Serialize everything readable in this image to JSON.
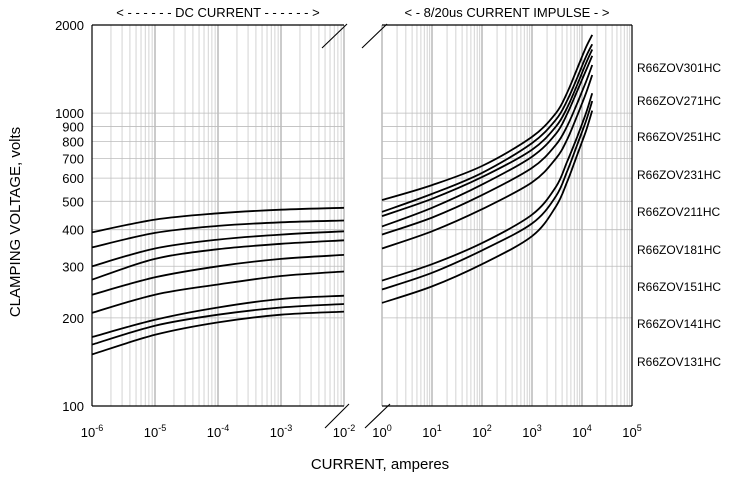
{
  "chart_data": {
    "type": "line",
    "ylabel": "CLAMPING VOLTAGE, volts",
    "xlabel": "CURRENT, amperes",
    "y_scale": "log",
    "ylim": [
      100,
      2000
    ],
    "y_ticks": [
      {
        "value": 100,
        "label": "100"
      },
      {
        "value": 200,
        "label": "200"
      },
      {
        "value": 300,
        "label": "300"
      },
      {
        "value": 400,
        "label": "400"
      },
      {
        "value": 500,
        "label": "500"
      },
      {
        "value": 600,
        "label": "600"
      },
      {
        "value": 700,
        "label": "700"
      },
      {
        "value": 800,
        "label": "800"
      },
      {
        "value": 900,
        "label": "900"
      },
      {
        "value": 1000,
        "label": "1000"
      },
      {
        "value": 2000,
        "label": "2000"
      }
    ],
    "x_scale": "log",
    "grid": true,
    "panels": [
      {
        "name": "dc",
        "header": "< - - - - - - DC CURRENT - - - - - - >",
        "xlim": [
          1e-06,
          0.01
        ],
        "x_ticks": [
          {
            "value": 1e-06,
            "base": "10",
            "exp": "-6"
          },
          {
            "value": 1e-05,
            "base": "10",
            "exp": "-5"
          },
          {
            "value": 0.0001,
            "base": "10",
            "exp": "-4"
          },
          {
            "value": 0.001,
            "base": "10",
            "exp": "-3"
          },
          {
            "value": 0.01,
            "base": "10",
            "exp": "-2"
          }
        ]
      },
      {
        "name": "impulse",
        "header": "< - 8/20us CURRENT IMPULSE - >",
        "xlim": [
          1,
          100000
        ],
        "x_ticks": [
          {
            "value": 1,
            "base": "10",
            "exp": "0"
          },
          {
            "value": 10,
            "base": "10",
            "exp": "1"
          },
          {
            "value": 100,
            "base": "10",
            "exp": "2"
          },
          {
            "value": 1000,
            "base": "10",
            "exp": "3"
          },
          {
            "value": 10000,
            "base": "10",
            "exp": "4"
          },
          {
            "value": 100000,
            "base": "10",
            "exp": "5"
          }
        ]
      }
    ],
    "series": [
      {
        "name": "R66ZOV301HC",
        "dc": [
          [
            1e-06,
            392
          ],
          [
            1e-05,
            433
          ],
          [
            0.0001,
            455
          ],
          [
            0.001,
            468
          ],
          [
            0.01,
            475
          ]
        ],
        "impulse": [
          [
            1,
            505
          ],
          [
            10,
            568
          ],
          [
            100,
            660
          ],
          [
            1000,
            830
          ],
          [
            3000,
            1000
          ],
          [
            5000,
            1170
          ],
          [
            8000,
            1420
          ],
          [
            12000,
            1680
          ],
          [
            16000,
            1850
          ]
        ]
      },
      {
        "name": "R66ZOV271HC",
        "dc": [
          [
            1e-06,
            348
          ],
          [
            1e-05,
            390
          ],
          [
            0.0001,
            412
          ],
          [
            0.001,
            424
          ],
          [
            0.01,
            430
          ]
        ],
        "impulse": [
          [
            1,
            460
          ],
          [
            10,
            530
          ],
          [
            100,
            625
          ],
          [
            1000,
            790
          ],
          [
            3000,
            950
          ],
          [
            5000,
            1100
          ],
          [
            8000,
            1320
          ],
          [
            12000,
            1560
          ],
          [
            16000,
            1720
          ]
        ]
      },
      {
        "name": "R66ZOV251HC",
        "dc": [
          [
            1e-06,
            300
          ],
          [
            1e-05,
            345
          ],
          [
            0.0001,
            370
          ],
          [
            0.001,
            385
          ],
          [
            0.01,
            395
          ]
        ],
        "impulse": [
          [
            1,
            445
          ],
          [
            10,
            510
          ],
          [
            100,
            605
          ],
          [
            1000,
            750
          ],
          [
            3000,
            900
          ],
          [
            5000,
            1040
          ],
          [
            8000,
            1250
          ],
          [
            12000,
            1480
          ],
          [
            16000,
            1650
          ]
        ]
      },
      {
        "name": "R66ZOV231HC",
        "dc": [
          [
            1e-06,
            270
          ],
          [
            1e-05,
            318
          ],
          [
            0.0001,
            343
          ],
          [
            0.001,
            358
          ],
          [
            0.01,
            368
          ]
        ],
        "impulse": [
          [
            1,
            410
          ],
          [
            10,
            475
          ],
          [
            100,
            570
          ],
          [
            1000,
            710
          ],
          [
            3000,
            850
          ],
          [
            5000,
            990
          ],
          [
            8000,
            1190
          ],
          [
            12000,
            1400
          ],
          [
            16000,
            1570
          ]
        ]
      },
      {
        "name": "R66ZOV211HC",
        "dc": [
          [
            1e-06,
            240
          ],
          [
            1e-05,
            275
          ],
          [
            0.0001,
            300
          ],
          [
            0.001,
            318
          ],
          [
            0.01,
            328
          ]
        ],
        "impulse": [
          [
            1,
            385
          ],
          [
            10,
            440
          ],
          [
            100,
            525
          ],
          [
            1000,
            650
          ],
          [
            3000,
            780
          ],
          [
            5000,
            900
          ],
          [
            8000,
            1080
          ],
          [
            12000,
            1280
          ],
          [
            16000,
            1460
          ]
        ]
      },
      {
        "name": "R66ZOV181HC",
        "dc": [
          [
            1e-06,
            208
          ],
          [
            1e-05,
            240
          ],
          [
            0.0001,
            260
          ],
          [
            0.001,
            278
          ],
          [
            0.01,
            288
          ]
        ],
        "impulse": [
          [
            1,
            345
          ],
          [
            10,
            395
          ],
          [
            100,
            470
          ],
          [
            1000,
            580
          ],
          [
            3000,
            700
          ],
          [
            5000,
            810
          ],
          [
            8000,
            980
          ],
          [
            12000,
            1170
          ],
          [
            16000,
            1350
          ]
        ]
      },
      {
        "name": "R66ZOV151HC",
        "dc": [
          [
            1e-06,
            172
          ],
          [
            1e-05,
            197
          ],
          [
            0.0001,
            217
          ],
          [
            0.001,
            232
          ],
          [
            0.01,
            238
          ]
        ],
        "impulse": [
          [
            1,
            268
          ],
          [
            10,
            305
          ],
          [
            100,
            360
          ],
          [
            1000,
            450
          ],
          [
            3000,
            560
          ],
          [
            5000,
            680
          ],
          [
            8000,
            830
          ],
          [
            12000,
            1000
          ],
          [
            16000,
            1170
          ]
        ]
      },
      {
        "name": "R66ZOV141HC",
        "dc": [
          [
            1e-06,
            162
          ],
          [
            1e-05,
            188
          ],
          [
            0.0001,
            205
          ],
          [
            0.001,
            217
          ],
          [
            0.01,
            223
          ]
        ],
        "impulse": [
          [
            1,
            250
          ],
          [
            10,
            285
          ],
          [
            100,
            340
          ],
          [
            1000,
            420
          ],
          [
            3000,
            520
          ],
          [
            5000,
            630
          ],
          [
            8000,
            780
          ],
          [
            12000,
            940
          ],
          [
            16000,
            1100
          ]
        ]
      },
      {
        "name": "R66ZOV131HC",
        "dc": [
          [
            1e-06,
            150
          ],
          [
            1e-05,
            175
          ],
          [
            0.0001,
            193
          ],
          [
            0.001,
            205
          ],
          [
            0.01,
            210
          ]
        ],
        "impulse": [
          [
            1,
            225
          ],
          [
            10,
            256
          ],
          [
            100,
            305
          ],
          [
            1000,
            380
          ],
          [
            3000,
            480
          ],
          [
            5000,
            580
          ],
          [
            8000,
            720
          ],
          [
            12000,
            870
          ],
          [
            16000,
            1020
          ]
        ]
      }
    ]
  }
}
